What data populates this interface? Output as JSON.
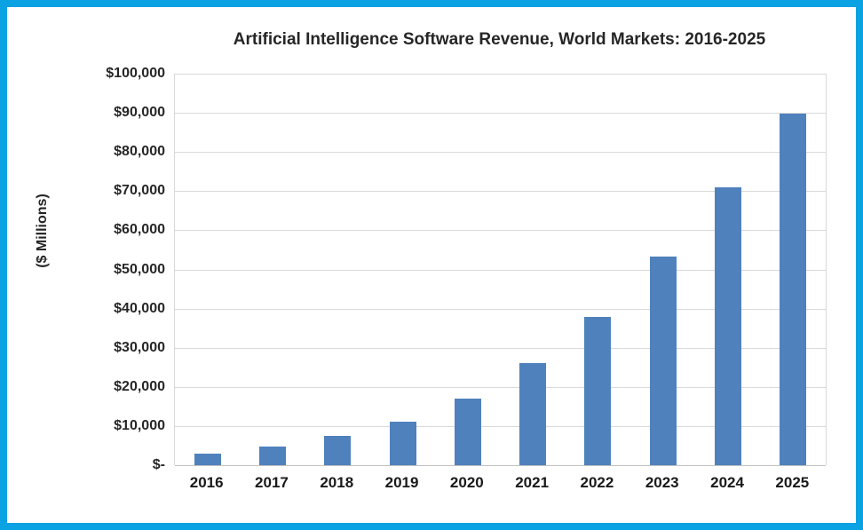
{
  "figure": {
    "frame_color": "#0aa2e2",
    "background": "#ffffff",
    "text_color": "#262626"
  },
  "chart_data": {
    "type": "bar",
    "title": "Artificial Intelligence Software Revenue, World Markets: 2016-2025",
    "xlabel": "",
    "ylabel": "($ Millions)",
    "categories": [
      "2016",
      "2017",
      "2018",
      "2019",
      "2020",
      "2021",
      "2022",
      "2023",
      "2024",
      "2025"
    ],
    "values": [
      3000,
      4800,
      7400,
      11100,
      17000,
      26000,
      37800,
      53200,
      71000,
      89800
    ],
    "ylim": [
      0,
      100000
    ],
    "y_ticks": [
      {
        "value": 100000,
        "label": "$100,000"
      },
      {
        "value": 90000,
        "label": "$90,000"
      },
      {
        "value": 80000,
        "label": "$80,000"
      },
      {
        "value": 70000,
        "label": "$70,000"
      },
      {
        "value": 60000,
        "label": "$60,000"
      },
      {
        "value": 50000,
        "label": "$50,000"
      },
      {
        "value": 40000,
        "label": "$40,000"
      },
      {
        "value": 30000,
        "label": "$30,000"
      },
      {
        "value": 20000,
        "label": "$20,000"
      },
      {
        "value": 10000,
        "label": "$10,000"
      },
      {
        "value": 0,
        "label": "$-"
      }
    ],
    "grid": true,
    "legend": "none",
    "bar_color": "#4f81bd",
    "gridline_color": "#d9d9d9"
  }
}
